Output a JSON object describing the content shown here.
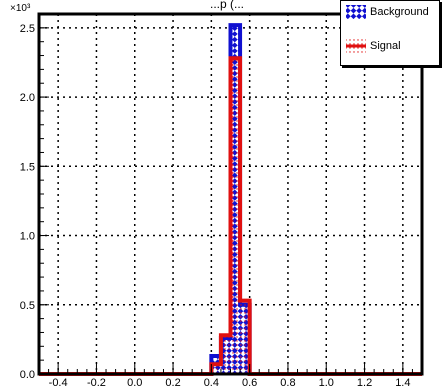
{
  "chart_data": {
    "type": "bar",
    "title": "...p (...",
    "x_exponent_label": "×10³",
    "xlim": [
      -0.5,
      1.5
    ],
    "ylim": [
      0,
      2.6
    ],
    "x_ticks": [
      "-0.4",
      "-0.2",
      "0.0",
      "0.2",
      "0.4",
      "0.6",
      "0.8",
      "1.0",
      "1.2",
      "1.4"
    ],
    "y_ticks": [
      "0.0",
      "0.5",
      "1.0",
      "1.5",
      "2.0",
      "2.5"
    ],
    "grid": true,
    "legend_position": "top-right",
    "bin_width": 0.05,
    "series": [
      {
        "name": "Background",
        "color": "#1010d0",
        "pattern": "blue-white-checker",
        "bins_x_low": [
          0.4,
          0.45,
          0.5,
          0.55
        ],
        "values": [
          0.13,
          0.26,
          2.52,
          0.5
        ]
      },
      {
        "name": "Signal",
        "color": "#e01010",
        "pattern": "red-dotted",
        "bins_x_low": [
          0.4,
          0.45,
          0.5,
          0.55
        ],
        "values": [
          0.07,
          0.28,
          2.28,
          0.53
        ]
      }
    ]
  },
  "legend": {
    "background_label": "Background",
    "signal_label": "Signal"
  }
}
